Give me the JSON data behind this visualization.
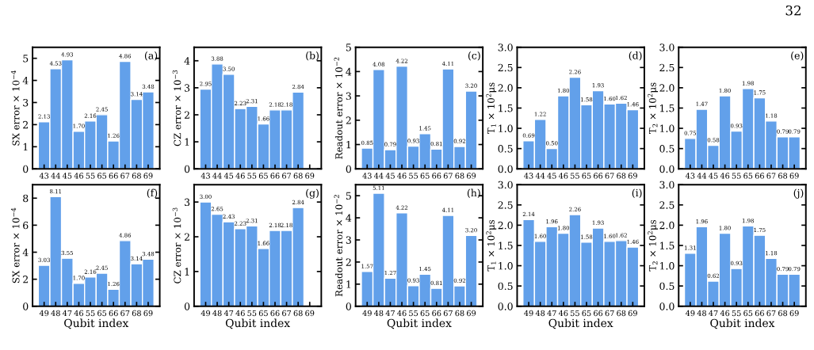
{
  "chart_data": [
    {
      "type": "bar",
      "title": "(a)",
      "ylabel": "SX error × 10$^{−4}$",
      "annotations": [
        "32"
      ],
      "color": "#62a0ea",
      "categories": [
        "43",
        "44",
        "45",
        "46",
        "55",
        "65",
        "66",
        "67",
        "68",
        "69"
      ],
      "values": [
        2.13,
        4.53,
        4.93,
        1.7,
        2.16,
        2.45,
        1.26,
        4.86,
        3.14,
        3.48
      ],
      "value_labels": [
        "2.13",
        "4.53",
        "4.93",
        "1.70",
        "2.16",
        "2.45",
        "1.26",
        "4.86",
        "3.14",
        "3.48"
      ],
      "ylim": [
        0,
        5.5
      ],
      "yticks": [
        0,
        1,
        2,
        3,
        4,
        5
      ],
      "grid": false,
      "legend": false
    },
    {
      "type": "bar",
      "title": "(b)",
      "ylabel": "CZ error × 10$^{−3}$",
      "color": "#62a0ea",
      "categories": [
        "43",
        "44",
        "45",
        "46",
        "55",
        "65",
        "66",
        "67",
        "68",
        "69"
      ],
      "values": [
        2.95,
        3.88,
        3.5,
        2.23,
        2.31,
        1.66,
        2.18,
        2.18,
        2.84,
        null
      ],
      "value_labels": [
        "2.95",
        "3.88",
        "3.50",
        "2.23",
        "2.31",
        "1.66",
        "2.18",
        "2.18",
        "2.84",
        null
      ],
      "ylim": [
        0,
        4.5
      ],
      "yticks": [
        0,
        1,
        2,
        3,
        4
      ],
      "grid": false,
      "legend": false
    },
    {
      "type": "bar",
      "title": "(c)",
      "ylabel": "Readout error × 10$^{−2}$",
      "color": "#62a0ea",
      "categories": [
        "43",
        "44",
        "45",
        "46",
        "55",
        "65",
        "66",
        "67",
        "68",
        "69"
      ],
      "values": [
        0.85,
        4.08,
        0.79,
        4.22,
        0.93,
        1.45,
        0.81,
        4.11,
        0.92,
        3.2
      ],
      "value_labels": [
        "0.85",
        "4.08",
        "0.79",
        "4.22",
        "0.93",
        "1.45",
        "0.81",
        "4.11",
        "0.92",
        "3.20"
      ],
      "ylim": [
        0,
        5
      ],
      "yticks": [
        0,
        1,
        2,
        3,
        4,
        5
      ],
      "grid": false,
      "legend": false
    },
    {
      "type": "bar",
      "title": "(d)",
      "ylabel": "T$_{1}$ × 10$^{2}$μs",
      "color": "#62a0ea",
      "categories": [
        "43",
        "44",
        "45",
        "46",
        "55",
        "65",
        "66",
        "67",
        "68",
        "69"
      ],
      "values": [
        0.69,
        1.22,
        0.5,
        1.8,
        2.26,
        1.58,
        1.93,
        1.6,
        1.62,
        1.46
      ],
      "value_labels": [
        "0.69",
        "1.22",
        "0.50",
        "1.80",
        "2.26",
        "1.58",
        "1.93",
        "1.60",
        "1.62",
        "1.46"
      ],
      "ylim": [
        0,
        3
      ],
      "yticks": [
        {
          "value": 0,
          "label": "0.0"
        },
        {
          "value": 0.5,
          "label": "0.5"
        },
        {
          "value": 1,
          "label": "1.0"
        },
        {
          "value": 1.5,
          "label": "1.5"
        },
        {
          "value": 2,
          "label": "2.0"
        },
        {
          "value": 2.5,
          "label": "2.5"
        },
        {
          "value": 3,
          "label": "3.0"
        }
      ],
      "grid": false,
      "legend": false
    },
    {
      "type": "bar",
      "title": "(e)",
      "ylabel": "T$_{2}$ × 10$^{2}$μs",
      "color": "#62a0ea",
      "categories": [
        "43",
        "44",
        "45",
        "46",
        "55",
        "65",
        "66",
        "67",
        "68",
        "69"
      ],
      "values": [
        0.75,
        1.47,
        0.58,
        1.8,
        0.93,
        1.98,
        1.75,
        1.18,
        0.79,
        0.79
      ],
      "value_labels": [
        "0.75",
        "1.47",
        "0.58",
        "1.80",
        "0.93",
        "1.98",
        "1.75",
        "1.18",
        "0.79",
        "0.79"
      ],
      "ylim": [
        0,
        3
      ],
      "yticks": [
        {
          "value": 0,
          "label": "0.0"
        },
        {
          "value": 0.5,
          "label": "0.5"
        },
        {
          "value": 1,
          "label": "1.0"
        },
        {
          "value": 1.5,
          "label": "1.5"
        },
        {
          "value": 2,
          "label": "2.0"
        },
        {
          "value": 2.5,
          "label": "2.5"
        },
        {
          "value": 3,
          "label": "3.0"
        }
      ],
      "grid": false,
      "legend": false
    },
    {
      "type": "bar",
      "title": "(f)",
      "xlabel": "Qubit index",
      "ylabel": "SX error × 10$^{−4}$",
      "color": "#62a0ea",
      "categories": [
        "49",
        "48",
        "47",
        "46",
        "55",
        "65",
        "66",
        "67",
        "68",
        "69"
      ],
      "values": [
        3.03,
        8.11,
        3.55,
        1.7,
        2.16,
        2.45,
        1.26,
        4.86,
        3.14,
        3.48
      ],
      "value_labels": [
        "3.03",
        "8.11",
        "3.55",
        "1.70",
        "2.16",
        "2.45",
        "1.26",
        "4.86",
        "3.14",
        "3.48"
      ],
      "ylim": [
        0,
        9
      ],
      "yticks": [
        0,
        2,
        4,
        6,
        8
      ],
      "grid": false,
      "legend": false
    },
    {
      "type": "bar",
      "title": "(g)",
      "xlabel": "Qubit index",
      "ylabel": "CZ error × 10$^{−3}$",
      "color": "#62a0ea",
      "categories": [
        "49",
        "48",
        "47",
        "46",
        "55",
        "65",
        "66",
        "67",
        "68",
        "69"
      ],
      "values": [
        3.0,
        2.65,
        2.43,
        2.23,
        2.31,
        1.66,
        2.18,
        2.18,
        2.84,
        null
      ],
      "value_labels": [
        "3.00",
        "2.65",
        "2.43",
        "2.23",
        "2.31",
        "1.66",
        "2.18",
        "2.18",
        "2.84",
        null
      ],
      "ylim": [
        0,
        3.5
      ],
      "yticks": [
        0,
        1,
        2,
        3
      ],
      "grid": false,
      "legend": false
    },
    {
      "type": "bar",
      "title": "(h)",
      "xlabel": "Qubit index",
      "ylabel": "Readout error × 10$^{−2}$",
      "color": "#62a0ea",
      "categories": [
        "49",
        "48",
        "47",
        "46",
        "55",
        "65",
        "66",
        "67",
        "68",
        "69"
      ],
      "values": [
        1.57,
        5.11,
        1.27,
        4.22,
        0.93,
        1.45,
        0.81,
        4.11,
        0.92,
        3.2
      ],
      "value_labels": [
        "1.57",
        "5.11",
        "1.27",
        "4.22",
        "0.93",
        "1.45",
        "0.81",
        "4.11",
        "0.92",
        "3.20"
      ],
      "ylim": [
        0,
        5.5
      ],
      "yticks": [
        0,
        1,
        2,
        3,
        4,
        5
      ],
      "grid": false,
      "legend": false
    },
    {
      "type": "bar",
      "title": "(i)",
      "xlabel": "Qubit index",
      "ylabel": "T$_{1}$ × 10$^{2}$μs",
      "color": "#62a0ea",
      "categories": [
        "49",
        "48",
        "47",
        "46",
        "55",
        "65",
        "66",
        "67",
        "68",
        "69"
      ],
      "values": [
        2.14,
        1.6,
        1.96,
        1.8,
        2.26,
        1.58,
        1.93,
        1.6,
        1.62,
        1.46
      ],
      "value_labels": [
        "2.14",
        "1.60",
        "1.96",
        "1.80",
        "2.26",
        "1.58",
        "1.93",
        "1.60",
        "1.62",
        "1.46"
      ],
      "ylim": [
        0,
        3
      ],
      "yticks": [
        {
          "value": 0,
          "label": "0.0"
        },
        {
          "value": 0.5,
          "label": "0.5"
        },
        {
          "value": 1,
          "label": "1.0"
        },
        {
          "value": 1.5,
          "label": "1.5"
        },
        {
          "value": 2,
          "label": "2.0"
        },
        {
          "value": 2.5,
          "label": "2.5"
        },
        {
          "value": 3,
          "label": "3.0"
        }
      ],
      "grid": false,
      "legend": false
    },
    {
      "type": "bar",
      "title": "(j)",
      "xlabel": "Qubit index",
      "ylabel": "T$_{2}$ × 10$^{2}$μs",
      "color": "#62a0ea",
      "categories": [
        "49",
        "48",
        "47",
        "46",
        "55",
        "65",
        "66",
        "67",
        "68",
        "69"
      ],
      "values": [
        1.31,
        1.96,
        0.62,
        1.8,
        0.93,
        1.98,
        1.75,
        1.18,
        0.79,
        0.79
      ],
      "value_labels": [
        "1.31",
        "1.96",
        "0.62",
        "1.80",
        "0.93",
        "1.98",
        "1.75",
        "1.18",
        "0.79",
        "0.79"
      ],
      "ylim": [
        0,
        3
      ],
      "yticks": [
        {
          "value": 0,
          "label": "0.0"
        },
        {
          "value": 0.5,
          "label": "0.5"
        },
        {
          "value": 1,
          "label": "1.0"
        },
        {
          "value": 1.5,
          "label": "1.5"
        },
        {
          "value": 2,
          "label": "2.0"
        },
        {
          "value": 2.5,
          "label": "2.5"
        },
        {
          "value": 3,
          "label": "3.0"
        }
      ],
      "grid": false,
      "legend": false
    }
  ]
}
